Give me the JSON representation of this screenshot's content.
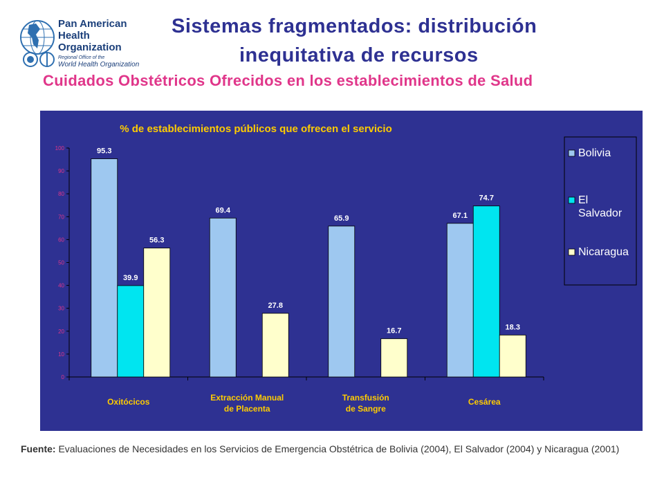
{
  "logo": {
    "line1": "Pan American",
    "line2": "Health",
    "line3": "Organization",
    "regional1": "Regional Office of the",
    "regional2": "World Health Organization"
  },
  "header": {
    "title_line1": "Sistemas fragmentados: distribución",
    "title_line2": "inequitativa de recursos",
    "subtitle": "Cuidados Obstétricos Ofrecidos en los establecimientos de Salud"
  },
  "chart_data": {
    "type": "bar",
    "title": "% de establecimientos públicos que ofrecen el servicio",
    "categories": [
      "Oxitócicos",
      "Extracción Manual de Placenta",
      "Transfusión de Sangre",
      "Cesárea"
    ],
    "category_lines": [
      [
        "Oxitócicos"
      ],
      [
        "Extracción Manual",
        "de Placenta"
      ],
      [
        "Transfusión",
        "de Sangre"
      ],
      [
        "Cesárea"
      ]
    ],
    "series": [
      {
        "name": "Bolivia",
        "color": "#9ec8f0",
        "values": [
          95.3,
          69.4,
          65.9,
          67.1
        ]
      },
      {
        "name": "El Salvador",
        "color": "#00e5f0",
        "values": [
          39.9,
          null,
          null,
          74.7
        ]
      },
      {
        "name": "Nicaragua",
        "color": "#ffffcc",
        "values": [
          56.3,
          27.8,
          16.7,
          18.3
        ]
      }
    ],
    "value_labels": [
      [
        "95.3",
        "39.9",
        "56.3"
      ],
      [
        "69.4",
        "",
        "27.8"
      ],
      [
        "65.9",
        "",
        "16.7"
      ],
      [
        "67.1",
        "74.7",
        "18.3"
      ]
    ],
    "ylim": [
      0,
      100
    ],
    "yticks": [
      "0",
      "10",
      "20",
      "30",
      "40",
      "50",
      "60",
      "70",
      "80",
      "90",
      "100"
    ],
    "legend_position": "right",
    "legend_lines": [
      [
        "Bolivia"
      ],
      [
        "El",
        "Salvador"
      ],
      [
        "Nicaragua"
      ]
    ],
    "grid": false,
    "colors": {
      "background": "#2e3192",
      "title": "#ffcc00",
      "tick_labels": "#e0368a",
      "value_labels": "#ffffff"
    }
  },
  "footer": {
    "label": "Fuente:",
    "text": " Evaluaciones de Necesidades en los Servicios de Emergencia Obstétrica de Bolivia (2004), El Salvador (2004) y Nicaragua (2001)"
  }
}
